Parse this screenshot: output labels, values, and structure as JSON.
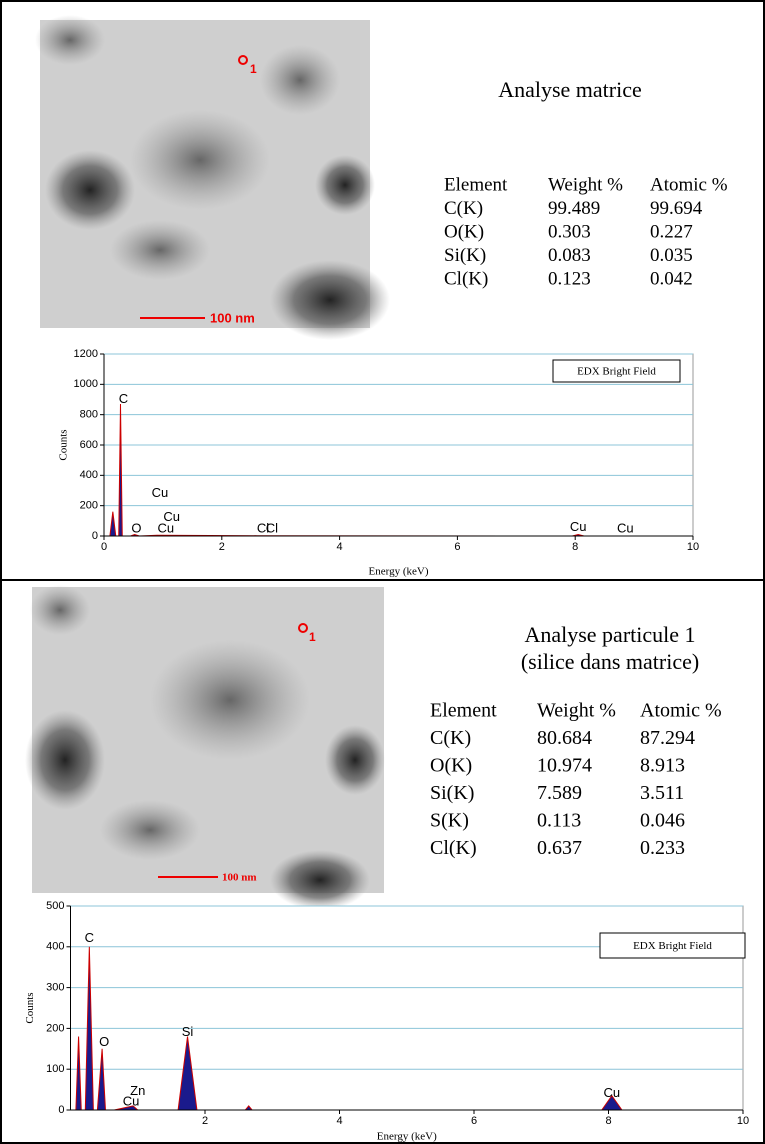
{
  "panels": [
    {
      "title": [
        "Analyse matrice"
      ],
      "image": {
        "scale_label": "100 nm",
        "marker_label": "1"
      },
      "table": {
        "header": [
          "Element",
          "Weight %",
          "Atomic %"
        ],
        "rows": [
          [
            "C(K)",
            "99.489",
            "99.694"
          ],
          [
            "O(K)",
            "0.303",
            "0.227"
          ],
          [
            "Si(K)",
            "0.083",
            "0.035"
          ],
          [
            "Cl(K)",
            "0.123",
            "0.042"
          ]
        ]
      }
    },
    {
      "title": [
        "Analyse particule 1",
        "(silice dans matrice)"
      ],
      "image": {
        "scale_label": "100 nm",
        "marker_label": "1"
      },
      "table": {
        "header": [
          "Element",
          "Weight %",
          "Atomic %"
        ],
        "rows": [
          [
            "C(K)",
            "80.684",
            "87.294"
          ],
          [
            "O(K)",
            "10.974",
            "8.913"
          ],
          [
            "Si(K)",
            "7.589",
            "3.511"
          ],
          [
            "S(K)",
            "0.113",
            "0.046"
          ],
          [
            "Cl(K)",
            "0.637",
            "0.233"
          ]
        ]
      }
    }
  ],
  "chart_data": [
    {
      "type": "area",
      "xlabel": "Energy (keV)",
      "ylabel": "Counts",
      "legend_loc": "upper right",
      "grid": true,
      "xlim": [
        0,
        10
      ],
      "xticks": [
        0,
        2,
        4,
        6,
        8,
        10
      ],
      "ylim": [
        0,
        1200
      ],
      "yticks": [
        0,
        200,
        400,
        600,
        800,
        1000,
        1200
      ],
      "x": [
        0,
        0.1,
        0.15,
        0.2,
        0.25,
        0.28,
        0.31,
        0.35,
        0.45,
        0.52,
        0.6,
        0.9,
        1.8,
        2.6,
        7.95,
        8.05,
        8.15,
        10
      ],
      "series": [
        {
          "name": "EDX Bright Field",
          "color": "#1a1a8c",
          "edge_color": "#cc0000",
          "values": [
            0,
            0,
            160,
            0,
            0,
            870,
            0,
            0,
            0,
            10,
            0,
            5,
            3,
            2,
            0,
            10,
            0,
            0
          ]
        }
      ],
      "annotations": [
        {
          "text": "C",
          "x": 0.33,
          "y": 900
        },
        {
          "text": "Cu",
          "x": 0.95,
          "y": 280
        },
        {
          "text": "Cu",
          "x": 1.15,
          "y": 120
        },
        {
          "text": "O",
          "x": 0.55,
          "y": 45
        },
        {
          "text": "Cu",
          "x": 1.05,
          "y": 45
        },
        {
          "text": "Cl",
          "x": 2.7,
          "y": 45
        },
        {
          "text": "Cl",
          "x": 2.85,
          "y": 45
        },
        {
          "text": "Cu",
          "x": 8.05,
          "y": 55
        },
        {
          "text": "Cu",
          "x": 8.85,
          "y": 45
        }
      ]
    },
    {
      "type": "area",
      "xlabel": "Energy (keV)",
      "ylabel": "Counts",
      "legend_loc": "upper right",
      "grid": true,
      "xlim": [
        0,
        10
      ],
      "xticks": [
        2,
        4,
        6,
        8,
        10
      ],
      "ylim": [
        0,
        500
      ],
      "yticks": [
        0,
        100,
        200,
        300,
        400,
        500
      ],
      "x": [
        0,
        0.08,
        0.12,
        0.16,
        0.22,
        0.28,
        0.34,
        0.4,
        0.47,
        0.52,
        0.58,
        0.65,
        0.93,
        1.0,
        1.6,
        1.74,
        1.88,
        2.0,
        2.6,
        2.65,
        2.7,
        7.9,
        8.05,
        8.2,
        10
      ],
      "series": [
        {
          "name": "EDX Bright Field",
          "color": "#1a1a8c",
          "edge_color": "#cc0000",
          "values": [
            0,
            0,
            180,
            0,
            0,
            400,
            0,
            0,
            150,
            0,
            0,
            0,
            10,
            0,
            0,
            180,
            0,
            0,
            0,
            10,
            0,
            0,
            35,
            0,
            0
          ]
        }
      ],
      "annotations": [
        {
          "text": "C",
          "x": 0.28,
          "y": 420
        },
        {
          "text": "O",
          "x": 0.5,
          "y": 165
        },
        {
          "text": "Zn",
          "x": 1.0,
          "y": 45
        },
        {
          "text": "Cu",
          "x": 0.9,
          "y": 20
        },
        {
          "text": "Si",
          "x": 1.74,
          "y": 190
        },
        {
          "text": "Cu",
          "x": 8.05,
          "y": 40
        }
      ]
    }
  ]
}
